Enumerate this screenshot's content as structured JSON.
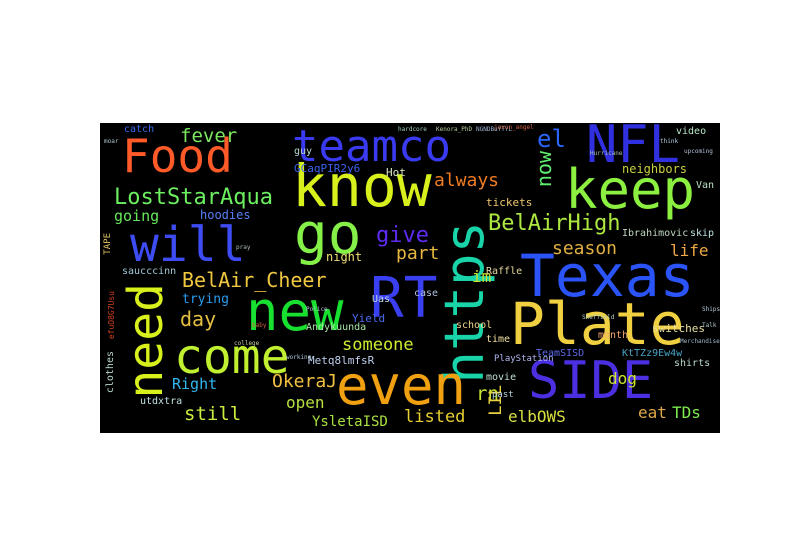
{
  "words": [
    {
      "id": "food",
      "text": "Food",
      "color": "#ff5a28"
    },
    {
      "id": "teamco",
      "text": "teamco",
      "color": "#3a3af0"
    },
    {
      "id": "nfl",
      "text": "NFL",
      "color": "#3030e0"
    },
    {
      "id": "know",
      "text": "know",
      "color": "#d8f01c"
    },
    {
      "id": "keep",
      "text": "keep",
      "color": "#8cf040"
    },
    {
      "id": "will",
      "text": "will",
      "color": "#3e4cf4"
    },
    {
      "id": "go",
      "text": "go",
      "color": "#84f048"
    },
    {
      "id": "https",
      "text": "https",
      "color": "#18d4a8"
    },
    {
      "id": "texas",
      "text": "Texas",
      "color": "#2a54f8"
    },
    {
      "id": "need",
      "text": "need",
      "color": "#d8f01c"
    },
    {
      "id": "new",
      "text": "new",
      "color": "#18e030"
    },
    {
      "id": "rt",
      "text": "RT",
      "color": "#3a40f2"
    },
    {
      "id": "plate",
      "text": "Plate",
      "color": "#f0d040"
    },
    {
      "id": "come",
      "text": "come",
      "color": "#c0f030"
    },
    {
      "id": "even",
      "text": "even",
      "color": "#f0a010"
    },
    {
      "id": "side",
      "text": "SIDE",
      "color": "#4a30e0"
    },
    {
      "id": "lost-star-aqua",
      "text": "LostStarAqua",
      "color": "#6cf060"
    },
    {
      "id": "bel-air-high",
      "text": "BelAirHigh",
      "color": "#ace840"
    },
    {
      "id": "bel-air-cheer",
      "text": "BelAir_Cheer",
      "color": "#f0c840"
    },
    {
      "id": "give",
      "text": "give",
      "color": "#5e2cf0"
    },
    {
      "id": "fever",
      "text": "fever",
      "color": "#7ce860"
    },
    {
      "id": "el",
      "text": "el",
      "color": "#2a64f8"
    },
    {
      "id": "always",
      "text": "always",
      "color": "#f07c24"
    },
    {
      "id": "now",
      "text": "now",
      "color": "#60f070"
    },
    {
      "id": "going",
      "text": "going",
      "color": "#68e85c"
    },
    {
      "id": "hoodies",
      "text": "hoodies",
      "color": "#5880f8"
    },
    {
      "id": "season",
      "text": "season",
      "color": "#e0b040"
    },
    {
      "id": "life",
      "text": "life",
      "color": "#f0a848"
    },
    {
      "id": "part",
      "text": "part",
      "color": "#e8b840"
    },
    {
      "id": "night",
      "text": "night",
      "color": "#f0e070"
    },
    {
      "id": "day",
      "text": "day",
      "color": "#e4c040"
    },
    {
      "id": "trying",
      "text": "trying",
      "color": "#2a9cf0"
    },
    {
      "id": "im",
      "text": "im",
      "color": "#c8e030"
    },
    {
      "id": "someone",
      "text": "someone",
      "color": "#d0ec30"
    },
    {
      "id": "right",
      "text": "Right",
      "color": "#30b8f0"
    },
    {
      "id": "okeraj",
      "text": "OkeraJ",
      "color": "#f0c040"
    },
    {
      "id": "open",
      "text": "open",
      "color": "#b8e040"
    },
    {
      "id": "still",
      "text": "still",
      "color": "#c8ec40"
    },
    {
      "id": "listed",
      "text": "listed",
      "color": "#e8d030"
    },
    {
      "id": "rn",
      "text": "rn",
      "color": "#c8e030"
    },
    {
      "id": "lil",
      "text": "LIL",
      "color": "#e8d040"
    },
    {
      "id": "elbows",
      "text": "elbOWS",
      "color": "#d8e040"
    },
    {
      "id": "dog",
      "text": "dog",
      "color": "#d0e430"
    },
    {
      "id": "eat",
      "text": "eat",
      "color": "#e0a848"
    },
    {
      "id": "tds",
      "text": "TDs",
      "color": "#7cec50"
    },
    {
      "id": "ysleta-isd",
      "text": "YsletaISD",
      "color": "#a8e040"
    },
    {
      "id": "metq",
      "text": "Metq8lmfsR",
      "color": "#c0d0f0"
    },
    {
      "id": "andykuunda",
      "text": "Andykuunda",
      "color": "#a8e4a8"
    },
    {
      "id": "gcaq",
      "text": "GCaqPIR2y6",
      "color": "#3a60f0"
    },
    {
      "id": "neighbors",
      "text": "neighbors",
      "color": "#c8d040"
    },
    {
      "id": "van",
      "text": "Van",
      "color": "#b8e0c0"
    },
    {
      "id": "video",
      "text": "video",
      "color": "#b8e8c8"
    },
    {
      "id": "guy",
      "text": "guy",
      "color": "#b8d8d0"
    },
    {
      "id": "catch",
      "text": "catch",
      "color": "#3a6cf0"
    },
    {
      "id": "hot",
      "text": "Hot",
      "color": "#d8e8c0"
    },
    {
      "id": "tickets",
      "text": "tickets",
      "color": "#f0c870"
    },
    {
      "id": "raffle",
      "text": "Raffle",
      "color": "#e8d8a0"
    },
    {
      "id": "ibrahimovic",
      "text": "Ibrahimovic",
      "color": "#c0d8c0"
    },
    {
      "id": "skip",
      "text": "skip",
      "color": "#c0e0e0"
    },
    {
      "id": "saucccinn",
      "text": "saucccinn",
      "color": "#a0c8d8"
    },
    {
      "id": "uas",
      "text": "Uas",
      "color": "#c0d8e8"
    },
    {
      "id": "case",
      "text": "case",
      "color": "#b0c0e0"
    },
    {
      "id": "yield",
      "text": "Yield",
      "color": "#4a6cf0"
    },
    {
      "id": "school",
      "text": "school",
      "color": "#f0d890"
    },
    {
      "id": "month",
      "text": "month",
      "color": "#f0a870"
    },
    {
      "id": "switches",
      "text": "switches",
      "color": "#e8e0a0"
    },
    {
      "id": "time",
      "text": "time",
      "color": "#f0e0a0"
    },
    {
      "id": "team-sisd",
      "text": "TeamSISD",
      "color": "#5c68e8"
    },
    {
      "id": "ktt",
      "text": "KtTZz9Ew4w",
      "color": "#4aa4c8"
    },
    {
      "id": "playstation",
      "text": "PlayStation",
      "color": "#b0b8f0"
    },
    {
      "id": "movie",
      "text": "movie",
      "color": "#c0e0d0"
    },
    {
      "id": "past",
      "text": "past",
      "color": "#b8d8e0"
    },
    {
      "id": "shirts",
      "text": "shirts",
      "color": "#b8d8c8"
    },
    {
      "id": "clothes",
      "text": "clothes",
      "color": "#b8d8d0"
    },
    {
      "id": "utdxtra",
      "text": "utdxtra",
      "color": "#c0e0e0"
    },
    {
      "id": "tape",
      "text": "TAPE",
      "color": "#e0c060"
    },
    {
      "id": "efu",
      "text": "efuO8G7Usu",
      "color": "#d04020"
    },
    {
      "id": "tiny-1",
      "text": "moar",
      "color": "#b0c8d0"
    },
    {
      "id": "tiny-2",
      "text": "hardcore",
      "color": "#a0d0c0"
    },
    {
      "id": "tiny-3",
      "text": "Kenora_PhD",
      "color": "#b8d0a0"
    },
    {
      "id": "tiny-4",
      "text": "NGNDBuYTYL",
      "color": "#a0b8d8"
    },
    {
      "id": "tiny-5",
      "text": "jaxon_angel",
      "color": "#d06040"
    },
    {
      "id": "tiny-6",
      "text": "think",
      "color": "#b0c8e0"
    },
    {
      "id": "tiny-7",
      "text": "upcoming",
      "color": "#b0c0d8"
    },
    {
      "id": "tiny-8",
      "text": "Hurricane",
      "color": "#a8c0b0"
    },
    {
      "id": "tiny-9",
      "text": "Sheffield",
      "color": "#b0d0c0"
    },
    {
      "id": "tiny-10",
      "text": "Merchandise",
      "color": "#a0b8c8"
    },
    {
      "id": "tiny-11",
      "text": "Ships",
      "color": "#b8c8d8"
    },
    {
      "id": "tiny-12",
      "text": "Talk",
      "color": "#b0c8d0"
    },
    {
      "id": "tiny-13",
      "text": "Police",
      "color": "#b8c0d8"
    },
    {
      "id": "tiny-14",
      "text": "baby",
      "color": "#d06040"
    },
    {
      "id": "tiny-15",
      "text": "pray",
      "color": "#a8c0b8"
    },
    {
      "id": "tiny-16",
      "text": "working",
      "color": "#b0c8d8"
    },
    {
      "id": "tiny-17",
      "text": "college",
      "color": "#c0d0a0"
    }
  ]
}
